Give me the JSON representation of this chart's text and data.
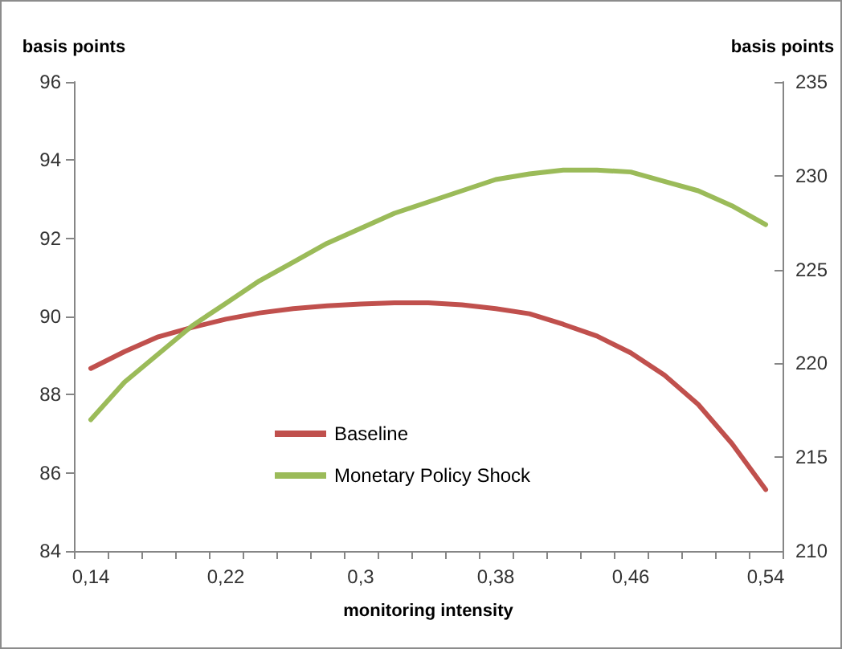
{
  "chart_data": {
    "type": "line",
    "xlabel": "monitoring intensity",
    "ylabel": "basis points",
    "y2label": "basis points",
    "categories": [
      "0,14",
      null,
      null,
      null,
      "0,22",
      null,
      null,
      null,
      "0,3",
      null,
      null,
      null,
      "0,38",
      null,
      null,
      null,
      "0,46",
      null,
      null,
      null,
      "0,54"
    ],
    "series": [
      {
        "name": "Baseline",
        "color": "#c0504d",
        "values": [
          88.67,
          89.1,
          89.48,
          89.72,
          89.93,
          90.09,
          90.2,
          90.27,
          90.32,
          90.35,
          90.35,
          90.3,
          90.2,
          90.07,
          89.8,
          89.5,
          89.07,
          88.5,
          87.75,
          86.75,
          85.57
        ]
      },
      {
        "name": "Monetary Policy Shock",
        "color": "#9bbb59",
        "axis": "y2",
        "values": [
          217.0,
          219.0,
          220.5,
          222.0,
          223.2,
          224.4,
          225.4,
          226.4,
          227.2,
          228.0,
          228.6,
          229.2,
          229.8,
          230.1,
          230.3,
          230.3,
          230.2,
          229.7,
          229.2,
          228.4,
          227.4
        ]
      }
    ],
    "ylim": [
      84,
      96
    ],
    "yticks": [
      84,
      86,
      88,
      90,
      92,
      94,
      96
    ],
    "y2lim": [
      210,
      235
    ],
    "y2ticks": [
      210,
      215,
      220,
      225,
      230,
      235
    ],
    "grid": false,
    "legend": "bottom",
    "marker": "none",
    "line_style": "solid"
  }
}
